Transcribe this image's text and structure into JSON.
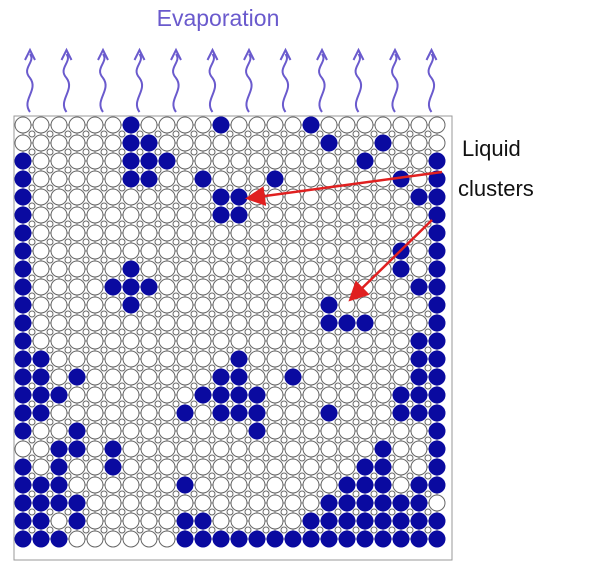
{
  "title": "Evaporation",
  "label": {
    "line1": "Liquid",
    "line2": "clusters"
  }
}
